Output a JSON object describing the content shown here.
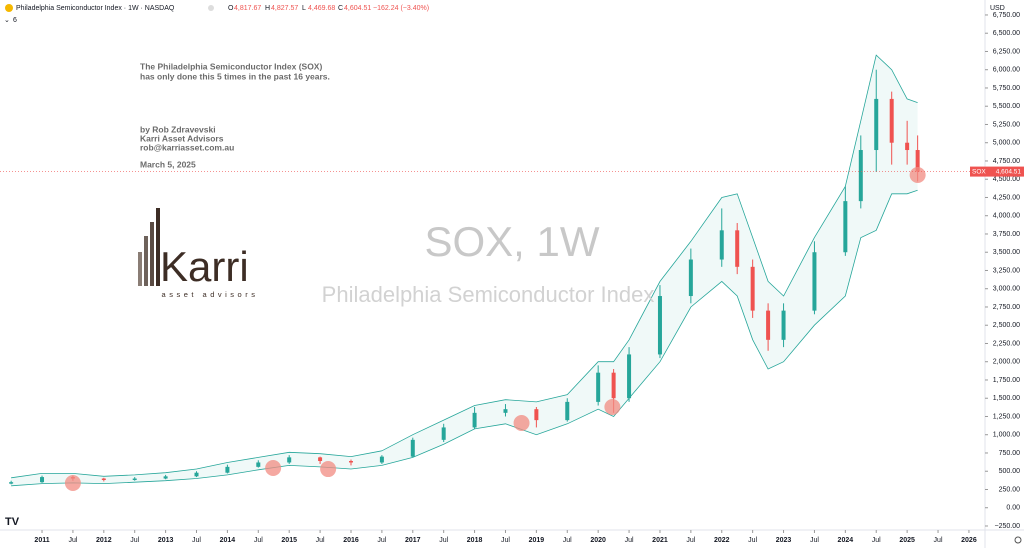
{
  "header": {
    "symbol": "Philadelphia Semiconductor Index · 1W · NASDAQ",
    "o_label": "O",
    "o": "4,817.67",
    "h_label": "H",
    "h": "4,827.57",
    "l_label": "L",
    "l": "4,469.68",
    "c_label": "C",
    "c": "4,604.51",
    "change": "−162.24 (−3.40%)",
    "indicators": "6",
    "currency": "USD"
  },
  "annotation": {
    "lines": [
      "The Philadelphia Semiconductor Index (SOX)",
      "has only done this 5 times in the past 16 years."
    ],
    "author": [
      "by Rob Zdravevski",
      "Karri Asset Advisors",
      "rob@karriasset.com.au"
    ],
    "date": "March 5, 2025"
  },
  "logo": {
    "name": "Karri",
    "tagline": "asset advisors"
  },
  "chart_data": {
    "type": "candlestick",
    "watermark": "SOX, 1W",
    "watermark_subtitle": "Philadelphia Semiconductor Index",
    "x": [
      2010.5,
      2011,
      2011.5,
      2012,
      2012.5,
      2013,
      2013.5,
      2014,
      2014.5,
      2015,
      2015.5,
      2016,
      2016.5,
      2017,
      2017.5,
      2018,
      2018.5,
      2019,
      2019.5,
      2020,
      2020.25,
      2020.5,
      2021,
      2021.5,
      2022,
      2022.25,
      2022.5,
      2022.75,
      2023,
      2023.5,
      2024,
      2024.25,
      2024.5,
      2024.75,
      2025,
      2025.17
    ],
    "open": [
      330,
      350,
      420,
      400,
      380,
      400,
      430,
      480,
      560,
      620,
      690,
      640,
      620,
      700,
      930,
      1100,
      1300,
      1350,
      1200,
      1450,
      1850,
      1500,
      2100,
      2900,
      3400,
      3800,
      3300,
      2700,
      2300,
      2700,
      3500,
      4200,
      4900,
      5600,
      5000,
      4900
    ],
    "high": [
      370,
      440,
      440,
      410,
      420,
      450,
      500,
      590,
      650,
      720,
      700,
      660,
      720,
      960,
      1150,
      1380,
      1420,
      1380,
      1500,
      1950,
      1900,
      2200,
      3050,
      3550,
      4100,
      3900,
      3400,
      2800,
      2800,
      3650,
      4400,
      5100,
      6000,
      5700,
      5300,
      5100
    ],
    "low": [
      320,
      340,
      370,
      360,
      370,
      390,
      420,
      470,
      550,
      600,
      600,
      580,
      600,
      690,
      900,
      1080,
      1250,
      1100,
      1180,
      1400,
      1300,
      1450,
      2050,
      2800,
      3300,
      3200,
      2600,
      2150,
      2200,
      2650,
      3450,
      4100,
      4600,
      4700,
      4700,
      4470
    ],
    "close": [
      350,
      420,
      400,
      380,
      400,
      430,
      480,
      560,
      620,
      690,
      640,
      620,
      700,
      930,
      1100,
      1300,
      1350,
      1200,
      1450,
      1850,
      1500,
      2100,
      2900,
      3400,
      3800,
      3300,
      2700,
      2300,
      2700,
      3500,
      4200,
      4900,
      5600,
      5000,
      4900,
      4605
    ],
    "up_color": "#26a69a",
    "down_color": "#ef5350",
    "bands": {
      "color": "#26a69a",
      "upper": [
        410,
        470,
        470,
        430,
        450,
        480,
        530,
        620,
        690,
        760,
        740,
        700,
        780,
        1000,
        1200,
        1400,
        1480,
        1450,
        1550,
        2000,
        2000,
        2300,
        3100,
        3650,
        4250,
        4300,
        3700,
        3100,
        2900,
        3700,
        4400,
        5300,
        6200,
        6000,
        5600,
        5550
      ],
      "lower": [
        300,
        330,
        340,
        330,
        350,
        370,
        400,
        450,
        520,
        580,
        560,
        530,
        580,
        690,
        870,
        1080,
        1150,
        1000,
        1150,
        1350,
        1250,
        1500,
        2000,
        2750,
        3100,
        2900,
        2300,
        1900,
        2000,
        2500,
        2900,
        3700,
        3800,
        4300,
        4300,
        4350
      ]
    },
    "highlights": {
      "color": "#f28b82",
      "x": [
        2011.5,
        2014.74,
        2015.63,
        2018.76,
        2020.23,
        2025.17
      ],
      "y": [
        339,
        544,
        530,
        1161,
        1380,
        4558
      ]
    },
    "last": {
      "name": "SOX",
      "value": 4604.51,
      "label": "4,604.51"
    },
    "xlim": [
      2010.32,
      2026.26
    ],
    "ylim": [
      -305,
      6955
    ],
    "xticks": [
      2011,
      {
        "value": 2011.5,
        "label": "Jul"
      },
      2012,
      {
        "value": 2012.5,
        "label": "Jul"
      },
      2013,
      {
        "value": 2013.5,
        "label": "Jul"
      },
      2014,
      {
        "value": 2014.5,
        "label": "Jul"
      },
      2015,
      {
        "value": 2015.5,
        "label": "Jul"
      },
      2016,
      {
        "value": 2016.5,
        "label": "Jul"
      },
      2017,
      {
        "value": 2017.5,
        "label": "Jul"
      },
      2018,
      {
        "value": 2018.5,
        "label": "Jul"
      },
      2019,
      {
        "value": 2019.5,
        "label": "Jul"
      },
      2020,
      {
        "value": 2020.5,
        "label": "Jul"
      },
      2021,
      {
        "value": 2021.5,
        "label": "Jul"
      },
      2022,
      {
        "value": 2022.5,
        "label": "Jul"
      },
      2023,
      {
        "value": 2023.5,
        "label": "Jul"
      },
      2024,
      {
        "value": 2024.5,
        "label": "Jul"
      },
      2025,
      {
        "value": 2025.5,
        "label": "Jul"
      },
      2026
    ],
    "yticks": [
      {
        "value": -250,
        "label": "−250.00"
      },
      {
        "value": 0,
        "label": "0.00"
      },
      {
        "value": 250,
        "label": "250.00"
      },
      {
        "value": 500,
        "label": "500.00"
      },
      {
        "value": 750,
        "label": "750.00"
      },
      {
        "value": 1000,
        "label": "1,000.00"
      },
      {
        "value": 1250,
        "label": "1,250.00"
      },
      {
        "value": 1500,
        "label": "1,500.00"
      },
      {
        "value": 1750,
        "label": "1,750.00"
      },
      {
        "value": 2000,
        "label": "2,000.00"
      },
      {
        "value": 2250,
        "label": "2,250.00"
      },
      {
        "value": 2500,
        "label": "2,500.00"
      },
      {
        "value": 2750,
        "label": "2,750.00"
      },
      {
        "value": 3000,
        "label": "3,000.00"
      },
      {
        "value": 3250,
        "label": "3,250.00"
      },
      {
        "value": 3500,
        "label": "3,500.00"
      },
      {
        "value": 3750,
        "label": "3,750.00"
      },
      {
        "value": 4000,
        "label": "4,000.00"
      },
      {
        "value": 4250,
        "label": "4,250.00"
      },
      {
        "value": 4500,
        "label": "4,500.00"
      },
      {
        "value": 4750,
        "label": "4,750.00"
      },
      {
        "value": 5000,
        "label": "5,000.00"
      },
      {
        "value": 5250,
        "label": "5,250.00"
      },
      {
        "value": 5500,
        "label": "5,500.00"
      },
      {
        "value": 5750,
        "label": "5,750.00"
      },
      {
        "value": 6000,
        "label": "6,000.00"
      },
      {
        "value": 6250,
        "label": "6,250.00"
      },
      {
        "value": 6500,
        "label": "6,500.00"
      },
      {
        "value": 6750,
        "label": "6,750.00"
      }
    ]
  }
}
